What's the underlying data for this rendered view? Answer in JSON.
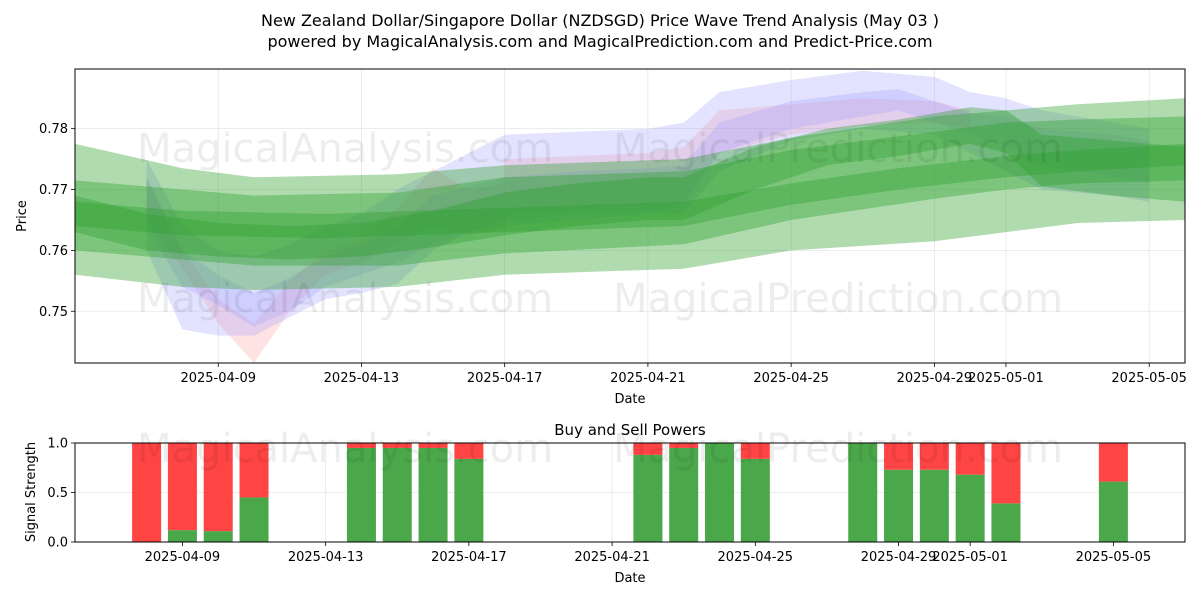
{
  "figure": {
    "title_line1": "New Zealand Dollar/Singapore Dollar (NZDSGD) Price Wave Trend Analysis (May 03 )",
    "title_line2": "powered by MagicalAnalysis.com and MagicalPrediction.com and Predict-Price.com"
  },
  "watermarks": [
    "MagicalAnalysis.com",
    "MagicalPrediction.com"
  ],
  "colors": {
    "green": "#2ca02c",
    "red": "#ff9999",
    "blue": "#9999ff",
    "buy": "#4aa84a",
    "sell": "#ff4444"
  },
  "chart_data": [
    {
      "type": "area",
      "title": "",
      "xlabel": "Date",
      "ylabel": "Price",
      "xlim": [
        "2025-04-05",
        "2025-05-06"
      ],
      "ylim": [
        0.7415,
        0.7898
      ],
      "grid": true,
      "x_ticks": [
        "2025-04-09",
        "2025-04-13",
        "2025-04-17",
        "2025-04-21",
        "2025-04-25",
        "2025-04-29",
        "2025-05-01",
        "2025-05-05"
      ],
      "y_ticks": [
        0.75,
        0.76,
        0.77,
        0.78
      ],
      "y_tick_labels": [
        "0.75",
        "0.76",
        "0.77",
        "0.78"
      ],
      "series": [
        {
          "kind": "band",
          "color": "green",
          "x": [
            "2025-04-05",
            "2025-04-08",
            "2025-04-10",
            "2025-04-14",
            "2025-04-17",
            "2025-04-22",
            "2025-04-25",
            "2025-04-29",
            "2025-05-01",
            "2025-05-03",
            "2025-05-06"
          ],
          "lower": [
            0.756,
            0.754,
            0.7535,
            0.754,
            0.756,
            0.757,
            0.76,
            0.7615,
            0.763,
            0.7645,
            0.765
          ],
          "upper": [
            0.7775,
            0.7735,
            0.772,
            0.7725,
            0.774,
            0.775,
            0.7785,
            0.782,
            0.783,
            0.784,
            0.785
          ]
        },
        {
          "kind": "band",
          "color": "green",
          "x": [
            "2025-04-05",
            "2025-04-08",
            "2025-04-10",
            "2025-04-14",
            "2025-04-17",
            "2025-04-22",
            "2025-04-25",
            "2025-04-29",
            "2025-05-01",
            "2025-05-03",
            "2025-05-06"
          ],
          "lower": [
            0.76,
            0.7585,
            0.7575,
            0.7575,
            0.7595,
            0.761,
            0.765,
            0.7685,
            0.77,
            0.771,
            0.7715
          ],
          "upper": [
            0.7715,
            0.77,
            0.769,
            0.7695,
            0.772,
            0.773,
            0.7765,
            0.7795,
            0.781,
            0.7815,
            0.782
          ]
        },
        {
          "kind": "band",
          "color": "green",
          "x": [
            "2025-04-05",
            "2025-04-07",
            "2025-04-09",
            "2025-04-11",
            "2025-04-13",
            "2025-04-15",
            "2025-04-17",
            "2025-04-19",
            "2025-04-21",
            "2025-04-22",
            "2025-04-24",
            "2025-04-26",
            "2025-04-28",
            "2025-04-30",
            "2025-05-01",
            "2025-05-02",
            "2025-05-04",
            "2025-05-05",
            "2025-05-06"
          ],
          "lower": [
            0.763,
            0.76,
            0.759,
            0.7585,
            0.759,
            0.7605,
            0.7625,
            0.764,
            0.765,
            0.765,
            0.77,
            0.774,
            0.7755,
            0.7775,
            0.776,
            0.7705,
            0.769,
            0.7685,
            0.768
          ],
          "upper": [
            0.769,
            0.766,
            0.7645,
            0.764,
            0.7645,
            0.7665,
            0.7695,
            0.771,
            0.772,
            0.772,
            0.777,
            0.78,
            0.7815,
            0.7835,
            0.783,
            0.779,
            0.778,
            0.7775,
            0.777
          ]
        },
        {
          "kind": "band",
          "color": "green",
          "x": [
            "2025-04-05",
            "2025-04-08",
            "2025-04-12",
            "2025-04-17",
            "2025-04-22",
            "2025-04-25",
            "2025-04-28",
            "2025-05-01",
            "2025-05-03",
            "2025-05-06"
          ],
          "lower": [
            0.764,
            0.7625,
            0.762,
            0.763,
            0.764,
            0.7675,
            0.77,
            0.772,
            0.773,
            0.774
          ],
          "upper": [
            0.768,
            0.7665,
            0.766,
            0.767,
            0.768,
            0.771,
            0.7735,
            0.7755,
            0.7765,
            0.7775
          ]
        },
        {
          "kind": "band",
          "color": "red",
          "x": [
            "2025-04-07",
            "2025-04-08",
            "2025-04-09",
            "2025-04-10",
            "2025-04-11",
            "2025-04-12",
            "2025-04-13",
            "2025-04-14",
            "2025-04-15",
            "2025-04-16",
            "2025-04-17"
          ],
          "lower": [
            0.765,
            0.757,
            0.748,
            0.7415,
            0.75,
            0.756,
            0.758,
            0.761,
            0.764,
            0.7625,
            0.7635
          ],
          "upper": [
            0.772,
            0.76,
            0.752,
            0.748,
            0.755,
            0.76,
            0.762,
            0.767,
            0.7735,
            0.77,
            0.771
          ]
        },
        {
          "kind": "band",
          "color": "red",
          "x": [
            "2025-04-17",
            "2025-04-19",
            "2025-04-21",
            "2025-04-22",
            "2025-04-23",
            "2025-04-25",
            "2025-04-27",
            "2025-04-29",
            "2025-04-30"
          ],
          "lower": [
            0.766,
            0.767,
            0.7675,
            0.768,
            0.776,
            0.779,
            0.7805,
            0.781,
            0.78
          ],
          "upper": [
            0.775,
            0.7755,
            0.776,
            0.777,
            0.783,
            0.784,
            0.785,
            0.7845,
            0.783
          ]
        },
        {
          "kind": "band",
          "color": "blue",
          "x": [
            "2025-04-07",
            "2025-04-08",
            "2025-04-09",
            "2025-04-10",
            "2025-04-11",
            "2025-04-12",
            "2025-04-13",
            "2025-04-14",
            "2025-04-15",
            "2025-04-16",
            "2025-04-17",
            "2025-04-19",
            "2025-04-21",
            "2025-04-22",
            "2025-04-23",
            "2025-04-25",
            "2025-04-27",
            "2025-04-29",
            "2025-04-30",
            "2025-05-01",
            "2025-05-02",
            "2025-05-04",
            "2025-05-05"
          ],
          "lower": [
            0.76,
            0.747,
            0.746,
            0.746,
            0.749,
            0.752,
            0.753,
            0.7545,
            0.76,
            0.763,
            0.764,
            0.765,
            0.766,
            0.766,
            0.773,
            0.778,
            0.78,
            0.779,
            0.776,
            0.773,
            0.77,
            0.769,
            0.768
          ],
          "upper": [
            0.775,
            0.764,
            0.76,
            0.759,
            0.761,
            0.764,
            0.766,
            0.77,
            0.773,
            0.776,
            0.779,
            0.7795,
            0.78,
            0.781,
            0.786,
            0.788,
            0.7895,
            0.7885,
            0.786,
            0.785,
            0.783,
            0.781,
            0.78
          ]
        },
        {
          "kind": "band",
          "color": "blue",
          "x": [
            "2025-04-07",
            "2025-04-08",
            "2025-04-09",
            "2025-04-10",
            "2025-04-11",
            "2025-04-12",
            "2025-04-13",
            "2025-04-14",
            "2025-04-15",
            "2025-04-17",
            "2025-04-19",
            "2025-04-21",
            "2025-04-22",
            "2025-04-23",
            "2025-04-25",
            "2025-04-27",
            "2025-04-28",
            "2025-04-29",
            "2025-04-30",
            "2025-05-01",
            "2025-05-02",
            "2025-05-04",
            "2025-05-05"
          ],
          "lower": [
            0.764,
            0.754,
            0.751,
            0.7475,
            0.75,
            0.754,
            0.756,
            0.758,
            0.761,
            0.765,
            0.766,
            0.7665,
            0.767,
            0.776,
            0.78,
            0.782,
            0.783,
            0.781,
            0.779,
            0.777,
            0.774,
            0.772,
            0.771
          ],
          "upper": [
            0.772,
            0.76,
            0.756,
            0.753,
            0.7555,
            0.759,
            0.761,
            0.764,
            0.769,
            0.772,
            0.773,
            0.7735,
            0.774,
            0.781,
            0.7845,
            0.786,
            0.7865,
            0.7845,
            0.7825,
            0.782,
            0.78,
            0.779,
            0.778
          ]
        }
      ]
    },
    {
      "type": "bar",
      "title": "Buy and Sell Powers",
      "xlabel": "Date",
      "ylabel": "Signal Strength",
      "xlim": [
        "2025-04-06",
        "2025-05-07"
      ],
      "ylim": [
        0,
        1.0
      ],
      "grid": true,
      "x_ticks": [
        "2025-04-09",
        "2025-04-13",
        "2025-04-17",
        "2025-04-21",
        "2025-04-25",
        "2025-04-29",
        "2025-05-01",
        "2025-05-05"
      ],
      "y_ticks": [
        0.0,
        0.5,
        1.0
      ],
      "y_tick_labels": [
        "0.0",
        "0.5",
        "1.0"
      ],
      "categories": [
        "2025-04-08",
        "2025-04-09",
        "2025-04-10",
        "2025-04-11",
        "2025-04-14",
        "2025-04-15",
        "2025-04-16",
        "2025-04-17",
        "2025-04-22",
        "2025-04-23",
        "2025-04-24",
        "2025-04-25",
        "2025-04-28",
        "2025-04-29",
        "2025-04-30",
        "2025-05-01",
        "2025-05-02",
        "2025-05-05"
      ],
      "series": [
        {
          "name": "Buy",
          "color": "buy",
          "values": [
            0.0,
            0.12,
            0.11,
            0.45,
            0.95,
            0.95,
            0.95,
            0.84,
            0.88,
            0.95,
            1.0,
            0.84,
            1.0,
            0.73,
            0.73,
            0.68,
            0.39,
            0.61
          ]
        },
        {
          "name": "Sell",
          "color": "sell",
          "values": [
            1.0,
            0.88,
            0.89,
            0.55,
            0.05,
            0.05,
            0.05,
            0.16,
            0.12,
            0.05,
            0.0,
            0.16,
            0.0,
            0.27,
            0.27,
            0.32,
            0.61,
            0.39
          ]
        }
      ]
    }
  ]
}
